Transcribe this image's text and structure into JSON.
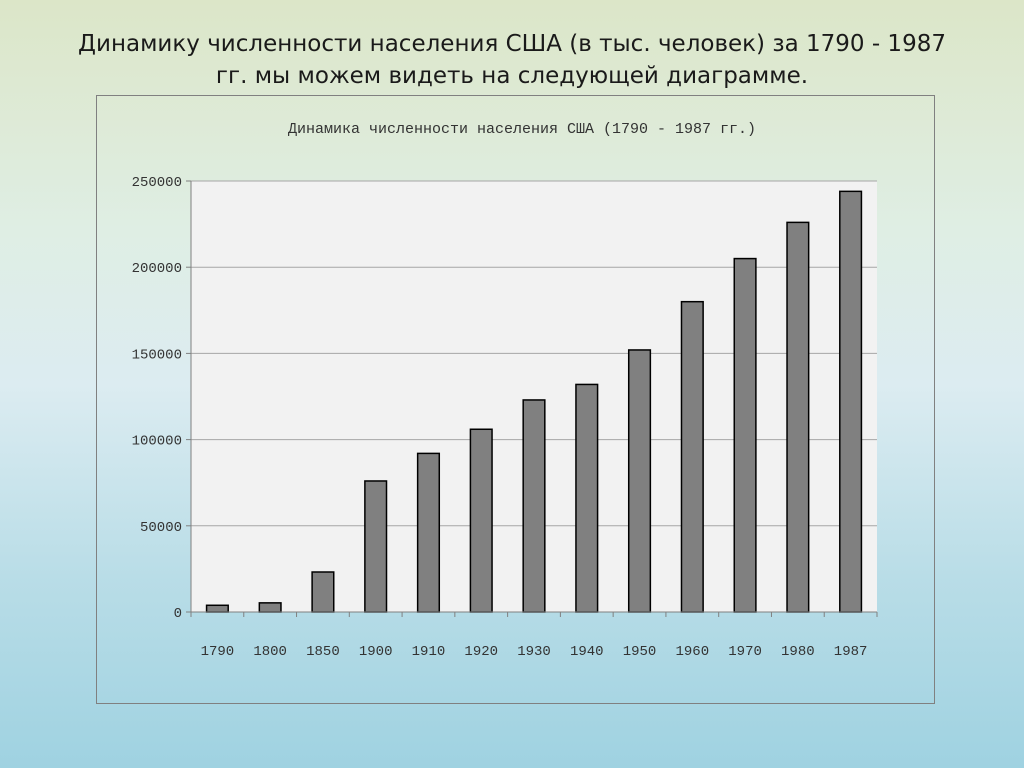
{
  "slide": {
    "title": "Динамику численности населения США (в тыс. человек) за 1790 - 1987 гг. мы можем видеть на следующей диаграмме."
  },
  "chart_data": {
    "type": "bar",
    "title": "Динамика численности населения США (1790 - 1987 гг.)",
    "xlabel": "",
    "ylabel": "",
    "categories": [
      "1790",
      "1800",
      "1850",
      "1900",
      "1910",
      "1920",
      "1930",
      "1940",
      "1950",
      "1960",
      "1970",
      "1980",
      "1987"
    ],
    "values": [
      3900,
      5300,
      23200,
      76000,
      92000,
      106000,
      123000,
      132000,
      152000,
      180000,
      205000,
      226000,
      244000
    ],
    "ylim": [
      0,
      250000
    ],
    "yticks": [
      "0",
      "50000",
      "100000",
      "150000",
      "200000",
      "250000"
    ],
    "grid": true,
    "legend": "none",
    "colors": {
      "bar": "#808080",
      "bar_edge": "#000000",
      "plot_bg": "#f2f2f2"
    }
  }
}
